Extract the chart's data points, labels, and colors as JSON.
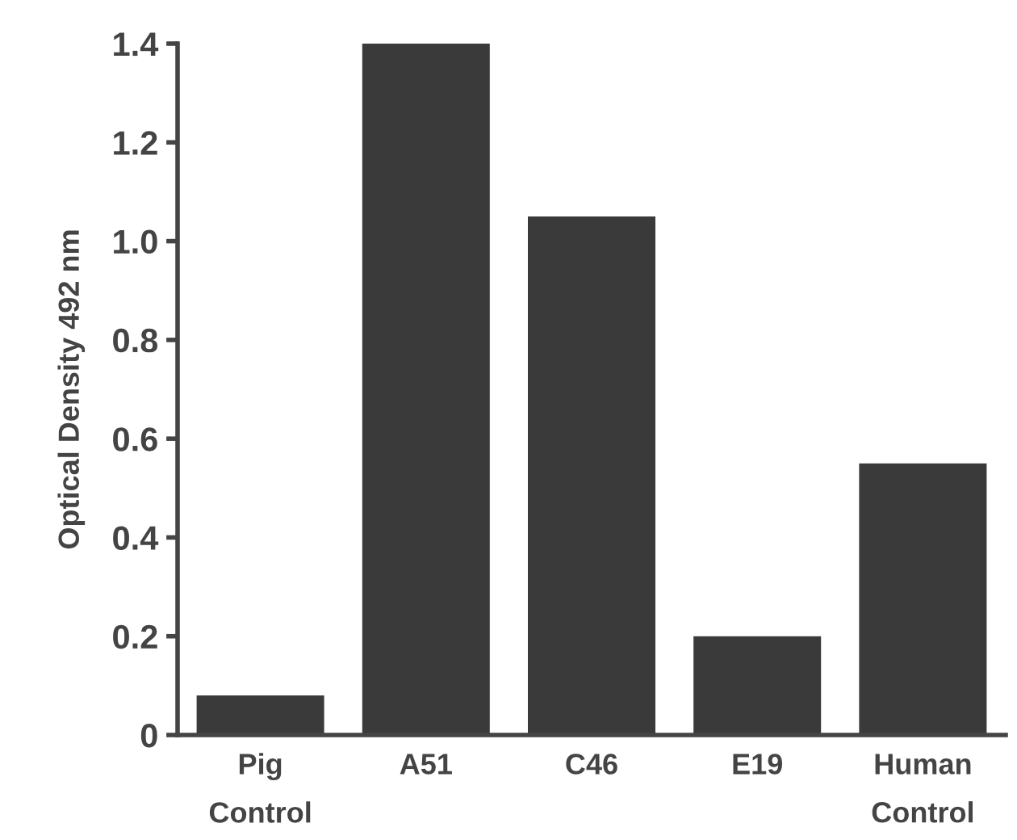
{
  "chart_data": {
    "type": "bar",
    "ylabel": "Optical Density 492 nm",
    "categories": [
      "Pig\nControl",
      "A51",
      "C46",
      "E19",
      "Human\nControl"
    ],
    "values": [
      0.08,
      1.4,
      1.05,
      0.2,
      0.55
    ],
    "color": "#3a3a3a",
    "ylim": [
      0,
      1.4
    ],
    "yticks": [
      0,
      {
        "value": 0.2,
        "label": "0.2"
      },
      {
        "value": 0.4,
        "label": "0.4"
      },
      {
        "value": 0.6,
        "label": "0.6"
      },
      {
        "value": 0.8,
        "label": "0.8"
      },
      {
        "value": 1.0,
        "label": "1.0"
      },
      {
        "value": 1.2,
        "label": "1.2"
      },
      {
        "value": 1.4,
        "label": "1.4"
      }
    ],
    "grid": false,
    "legend": false
  }
}
